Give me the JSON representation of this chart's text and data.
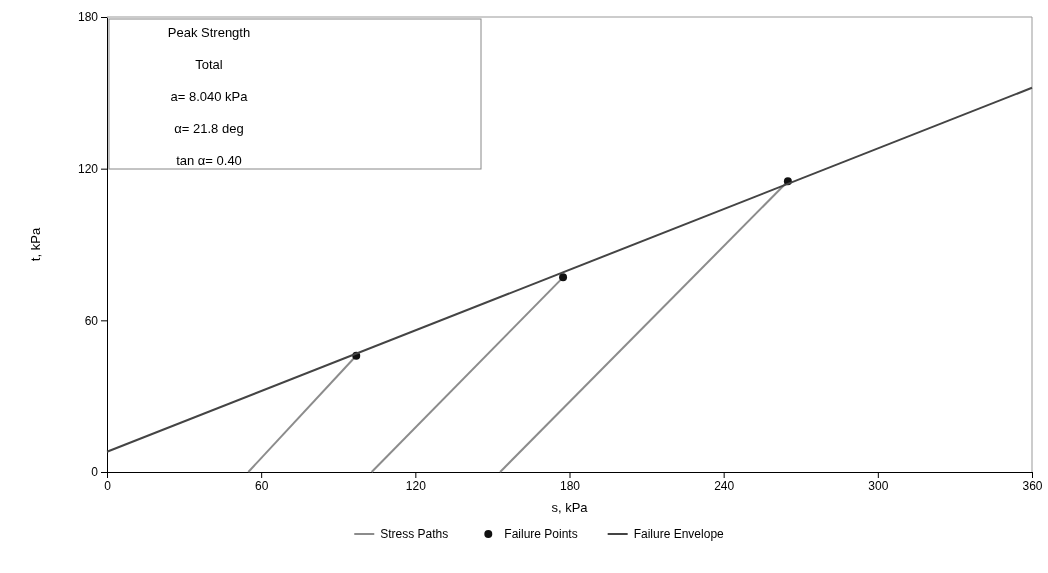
{
  "chart_data": {
    "type": "line",
    "xlabel": "s, kPa",
    "ylabel": "t, kPa",
    "xlim": [
      0,
      360
    ],
    "xticks": [
      0,
      60,
      120,
      180,
      240,
      300,
      360
    ],
    "ylim": [
      0,
      180
    ],
    "yticks": [
      0,
      60,
      120,
      180
    ],
    "annotations": [
      "Peak Strength",
      "Total",
      "a= 8.040 kPa",
      "α= 21.8 deg",
      "tan α= 0.40"
    ],
    "legend": "bottom",
    "grid": false,
    "series": [
      {
        "name": "Stress Paths",
        "color": "#8c8c8c",
        "x": [
          55,
          97
        ],
        "values": [
          0,
          46
        ]
      },
      {
        "color": "#8c8c8c",
        "x": [
          103,
          177.5
        ],
        "values": [
          0,
          77
        ]
      },
      {
        "color": "#8c8c8c",
        "x": [
          153,
          265
        ],
        "values": [
          0,
          115
        ]
      },
      {
        "name": "Failure Points",
        "type": "scatter",
        "marker": "circle",
        "color": "#111111",
        "x": [
          97,
          177.5,
          265
        ],
        "values": [
          46,
          77,
          115
        ]
      },
      {
        "name": "Failure Envelope",
        "color": "#444444",
        "x": [
          0,
          360
        ],
        "values": [
          8,
          152
        ]
      }
    ]
  }
}
